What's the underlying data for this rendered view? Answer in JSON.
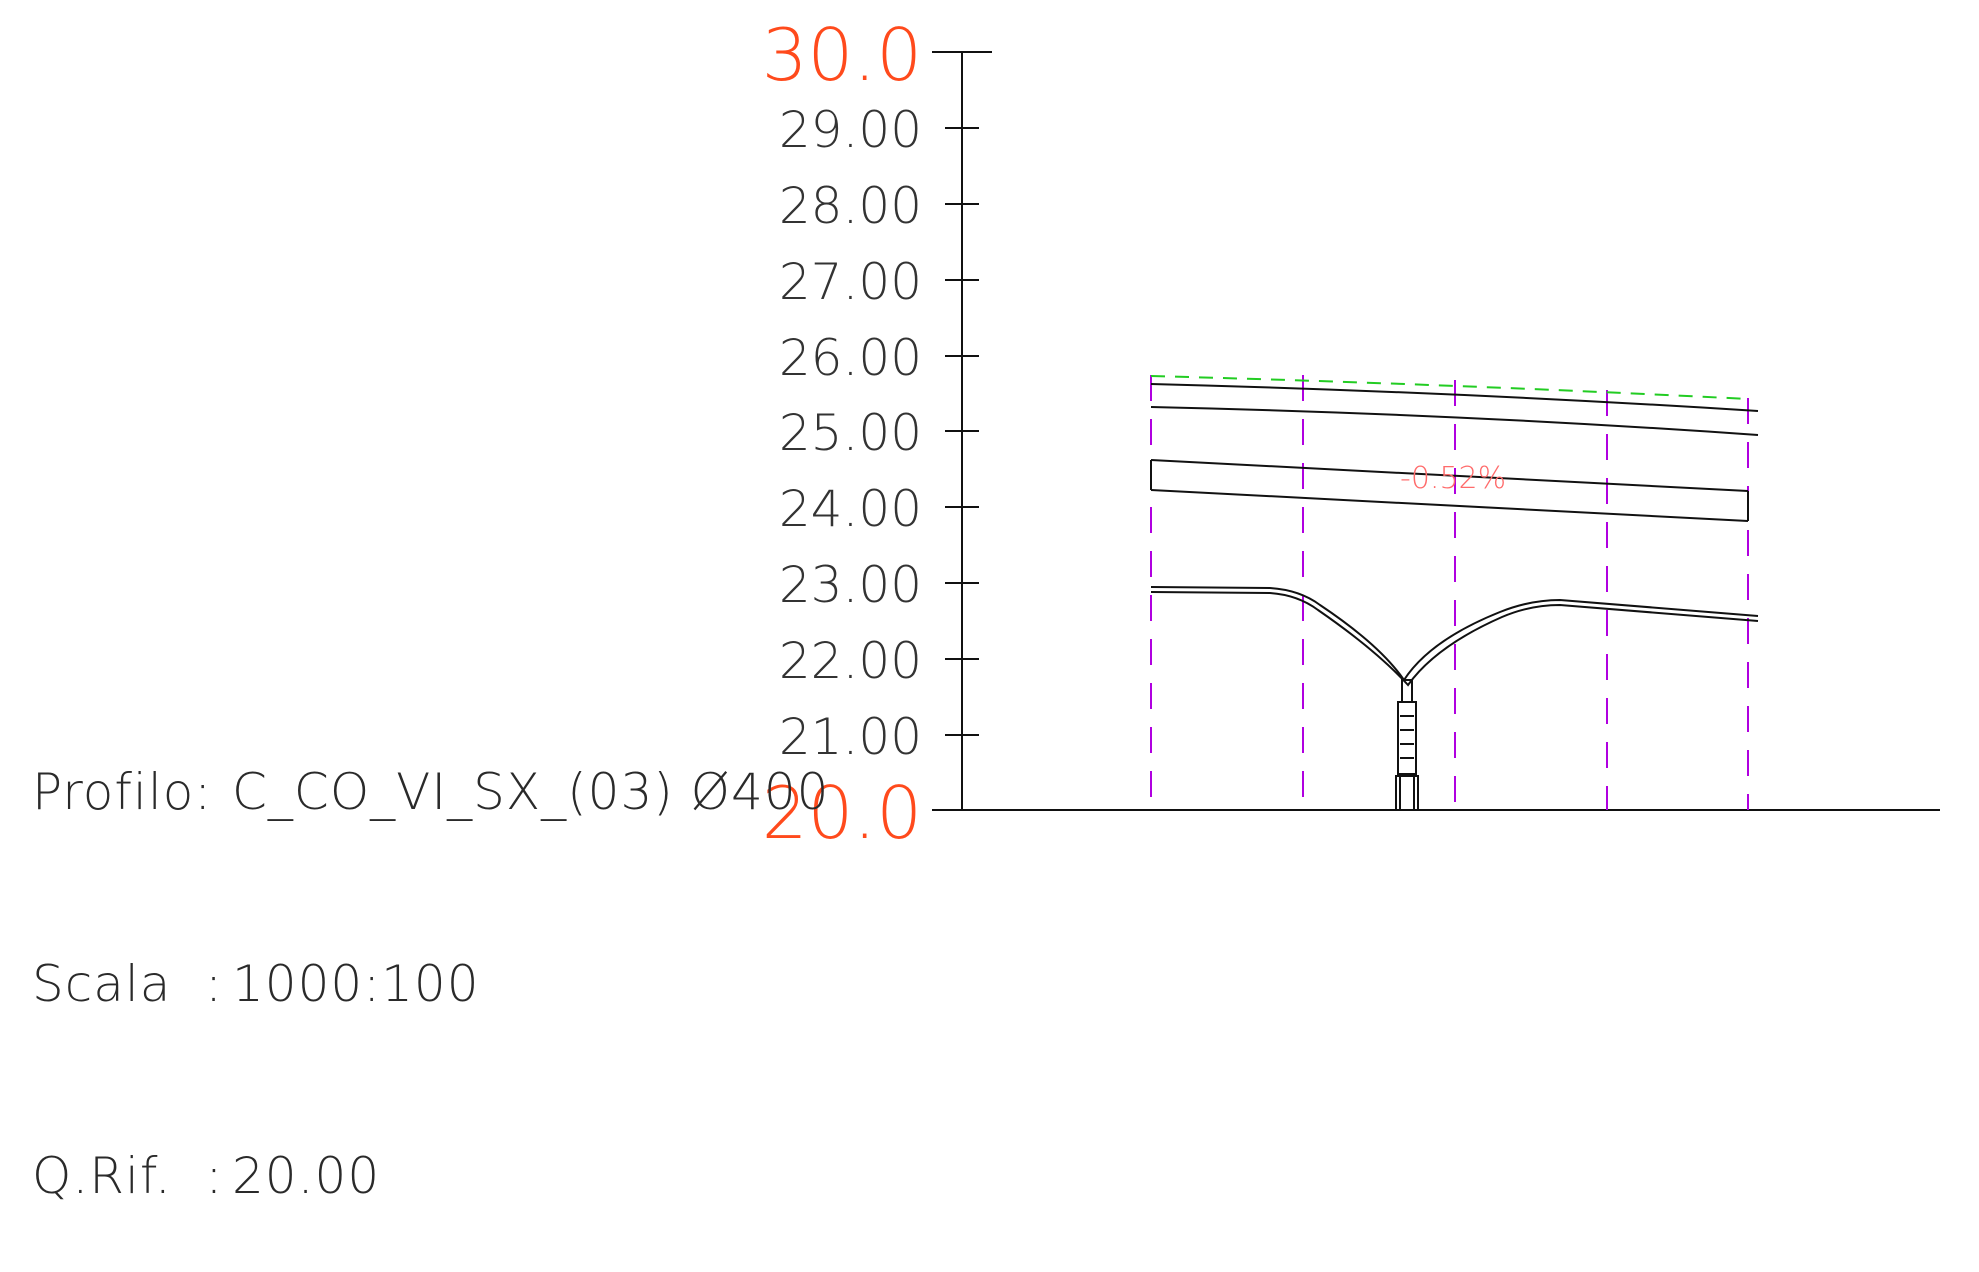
{
  "axis": {
    "top_label": "30.0",
    "bottom_label": "20.0",
    "tick_labels": [
      "29.00",
      "28.00",
      "27.00",
      "26.00",
      "25.00",
      "24.00",
      "23.00",
      "22.00",
      "21.00"
    ],
    "label_color": "#ff4a1c",
    "tick_color": "#3a3a3a"
  },
  "info": {
    "profile_key": "Profilo:",
    "profile_value": "C_CO_VI_SX_(03) Ø400",
    "scale_key": "Scala  :",
    "scale_value": "1000:100",
    "ref_key": "Q.Rif.  :",
    "ref_value": "20.00"
  },
  "slope_label": "-0.52%",
  "colors": {
    "line": "#111111",
    "dashed_top": "#22cc22",
    "verticals": "#b000e0",
    "slope_text": "#ff6b6b"
  }
}
